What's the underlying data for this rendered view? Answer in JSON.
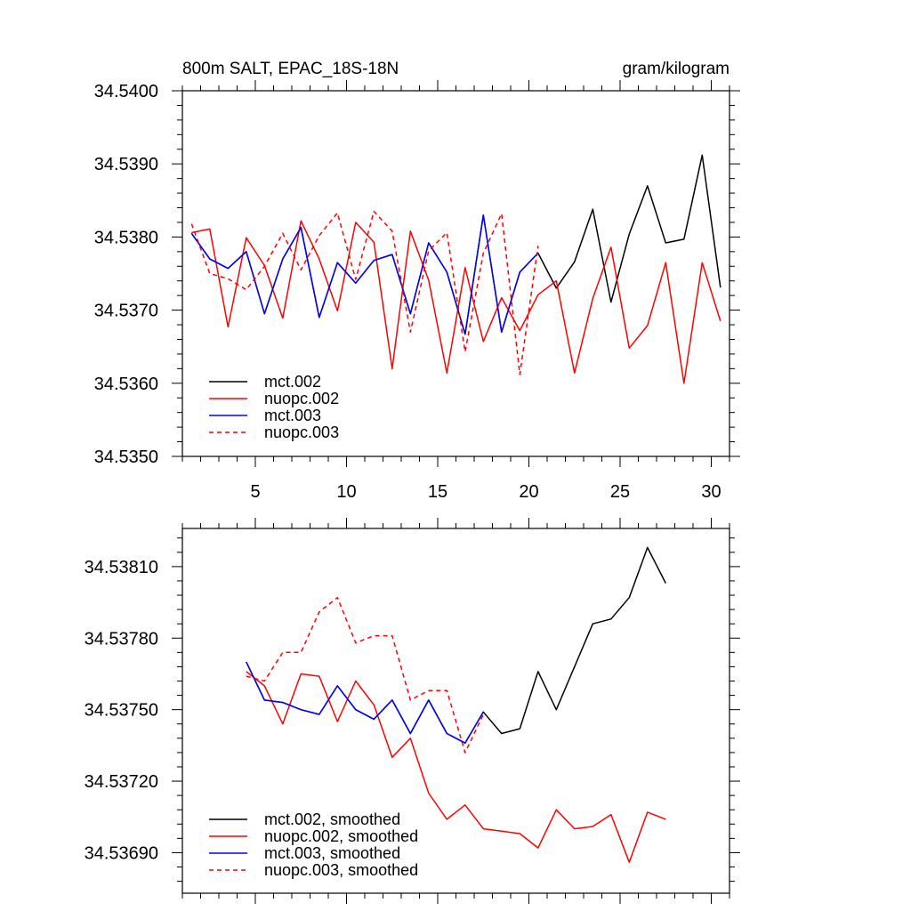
{
  "chart_data": [
    {
      "type": "line",
      "title": "800m SALT, EPAC_18S-18N",
      "units": "gram/kilogram",
      "xlabel": "",
      "ylabel": "",
      "xlim": [
        1,
        31
      ],
      "ylim": [
        34.535,
        34.54
      ],
      "x_ticks": [
        5,
        10,
        15,
        20,
        25,
        30
      ],
      "y_ticks": [
        34.535,
        34.536,
        34.537,
        34.538,
        34.539,
        34.54
      ],
      "y_tick_labels": [
        "34.5350",
        "34.5360",
        "34.5370",
        "34.5380",
        "34.5390",
        "34.5400"
      ],
      "x_tick_labels": [
        "5",
        "10",
        "15",
        "20",
        "25",
        "30"
      ],
      "legend_location": "lower-left",
      "series": [
        {
          "name": "mct.002",
          "color": "#000000",
          "dash": "solid",
          "x": [
            1.5,
            2.5,
            3.5,
            4.5,
            5.5,
            6.5,
            7.5,
            8.5,
            9.5,
            10.5,
            11.5,
            12.5,
            13.5,
            14.5,
            15.5,
            16.5,
            17.5,
            18.5,
            19.5,
            20.5,
            21.5,
            22.5,
            23.5,
            24.5,
            25.5,
            26.5,
            27.5,
            28.5,
            29.5,
            30.5
          ],
          "values": [
            34.53805,
            34.5377,
            34.53757,
            34.5378,
            34.53695,
            34.5377,
            34.53813,
            34.5369,
            34.53765,
            34.53737,
            34.53768,
            34.53776,
            34.53695,
            34.53792,
            34.53752,
            34.53667,
            34.5383,
            34.5367,
            34.53752,
            34.53778,
            34.5373,
            34.53766,
            34.53838,
            34.53711,
            34.53804,
            34.5387,
            34.53792,
            34.53797,
            34.53912,
            34.53731
          ]
        },
        {
          "name": "nuopc.002",
          "color": "#ff0000",
          "dash": "solid",
          "x": [
            1.5,
            2.5,
            3.5,
            4.5,
            5.5,
            6.5,
            7.5,
            8.5,
            9.5,
            10.5,
            11.5,
            12.5,
            13.5,
            14.5,
            15.5,
            16.5,
            17.5,
            18.5,
            19.5,
            20.5,
            21.5,
            22.5,
            23.5,
            24.5,
            25.5,
            26.5,
            27.5,
            28.5,
            29.5,
            30.5
          ],
          "values": [
            34.53806,
            34.53811,
            34.53677,
            34.53799,
            34.53761,
            34.53689,
            34.53822,
            34.5377,
            34.53699,
            34.5382,
            34.53793,
            34.5362,
            34.53808,
            34.53741,
            34.53614,
            34.53758,
            34.53657,
            34.53717,
            34.53672,
            34.53721,
            34.5374,
            34.53614,
            34.53716,
            34.53786,
            34.53648,
            34.53679,
            34.53765,
            34.536,
            34.53765,
            34.53685
          ]
        },
        {
          "name": "mct.003",
          "color": "#0000ff",
          "dash": "solid",
          "x": [
            1.5,
            2.5,
            3.5,
            4.5,
            5.5,
            6.5,
            7.5,
            8.5,
            9.5,
            10.5,
            11.5,
            12.5,
            13.5,
            14.5,
            15.5,
            16.5,
            17.5,
            18.5,
            19.5,
            20.5
          ],
          "values": [
            34.53805,
            34.5377,
            34.53757,
            34.5378,
            34.53695,
            34.5377,
            34.53813,
            34.5369,
            34.53765,
            34.53737,
            34.53768,
            34.53776,
            34.53695,
            34.53792,
            34.53752,
            34.53667,
            34.5383,
            34.5367,
            34.53752,
            34.53778
          ]
        },
        {
          "name": "nuopc.003",
          "color": "#ff0000",
          "dash": "dashed",
          "x": [
            1.5,
            2.5,
            3.5,
            4.5,
            5.5,
            6.5,
            7.5,
            8.5,
            9.5,
            10.5,
            11.5,
            12.5,
            13.5,
            14.5,
            15.5,
            16.5,
            17.5,
            18.5,
            19.5,
            20.5
          ],
          "values": [
            34.53818,
            34.5375,
            34.53743,
            34.53728,
            34.5376,
            34.53805,
            34.53755,
            34.53802,
            34.53833,
            34.53742,
            34.53835,
            34.53808,
            34.5367,
            34.53781,
            34.53806,
            34.53643,
            34.53778,
            34.53832,
            34.53612,
            34.53788
          ]
        }
      ]
    },
    {
      "type": "line",
      "title": "",
      "xlabel": "",
      "ylabel": "",
      "xlim": [
        1,
        31
      ],
      "ylim": [
        34.53673,
        34.53826
      ],
      "x_ticks": [
        5,
        10,
        15,
        20,
        25,
        30
      ],
      "y_ticks": [
        34.5369,
        34.5372,
        34.5375,
        34.5378,
        34.5381
      ],
      "y_tick_labels": [
        "34.53690",
        "34.53720",
        "34.53750",
        "34.53780",
        "34.53810"
      ],
      "legend_location": "lower-left",
      "series": [
        {
          "name": "mct.002, smoothed",
          "color": "#000000",
          "dash": "solid",
          "x": [
            4.5,
            5.5,
            6.5,
            7.5,
            8.5,
            9.5,
            10.5,
            11.5,
            12.5,
            13.5,
            14.5,
            15.5,
            16.5,
            17.5,
            18.5,
            19.5,
            20.5,
            21.5,
            22.5,
            23.5,
            24.5,
            25.5,
            26.5,
            27.5
          ],
          "values": [
            34.5377,
            34.53754,
            34.53753,
            34.5375,
            34.53748,
            34.5376,
            34.5375,
            34.53746,
            34.53754,
            34.5374,
            34.53754,
            34.5374,
            34.53736,
            34.53749,
            34.5374,
            34.53742,
            34.53766,
            34.5375,
            34.53768,
            34.53786,
            34.53788,
            34.53797,
            34.53818,
            34.53803
          ]
        },
        {
          "name": "nuopc.002, smoothed",
          "color": "#ff0000",
          "dash": "solid",
          "x": [
            4.5,
            5.5,
            6.5,
            7.5,
            8.5,
            9.5,
            10.5,
            11.5,
            12.5,
            13.5,
            14.5,
            15.5,
            16.5,
            17.5,
            18.5,
            19.5,
            20.5,
            21.5,
            22.5,
            23.5,
            24.5,
            25.5,
            26.5,
            27.5
          ],
          "values": [
            34.53766,
            34.5376,
            34.53744,
            34.53765,
            34.53764,
            34.53745,
            34.53762,
            34.53752,
            34.5373,
            34.53738,
            34.53715,
            34.53704,
            34.5371,
            34.537,
            34.53699,
            34.53698,
            34.53692,
            34.53708,
            34.537,
            34.53701,
            34.53706,
            34.53686,
            34.53707,
            34.53704
          ]
        },
        {
          "name": "mct.003, smoothed",
          "color": "#0000ff",
          "dash": "solid",
          "x": [
            4.5,
            5.5,
            6.5,
            7.5,
            8.5,
            9.5,
            10.5,
            11.5,
            12.5,
            13.5,
            14.5,
            15.5,
            16.5,
            17.5
          ],
          "values": [
            34.5377,
            34.53754,
            34.53753,
            34.5375,
            34.53748,
            34.5376,
            34.5375,
            34.53746,
            34.53754,
            34.5374,
            34.53754,
            34.5374,
            34.53736,
            34.53749
          ]
        },
        {
          "name": "nuopc.003, smoothed",
          "color": "#ff0000",
          "dash": "dashed",
          "x": [
            4.5,
            5.5,
            6.5,
            7.5,
            8.5,
            9.5,
            10.5,
            11.5,
            12.5,
            13.5,
            14.5,
            15.5,
            16.5,
            17.5
          ],
          "values": [
            34.53764,
            34.53762,
            34.53774,
            34.53774,
            34.53791,
            34.53797,
            34.53778,
            34.53781,
            34.53781,
            34.53754,
            34.53758,
            34.53758,
            34.53732,
            34.53748
          ]
        }
      ]
    }
  ]
}
